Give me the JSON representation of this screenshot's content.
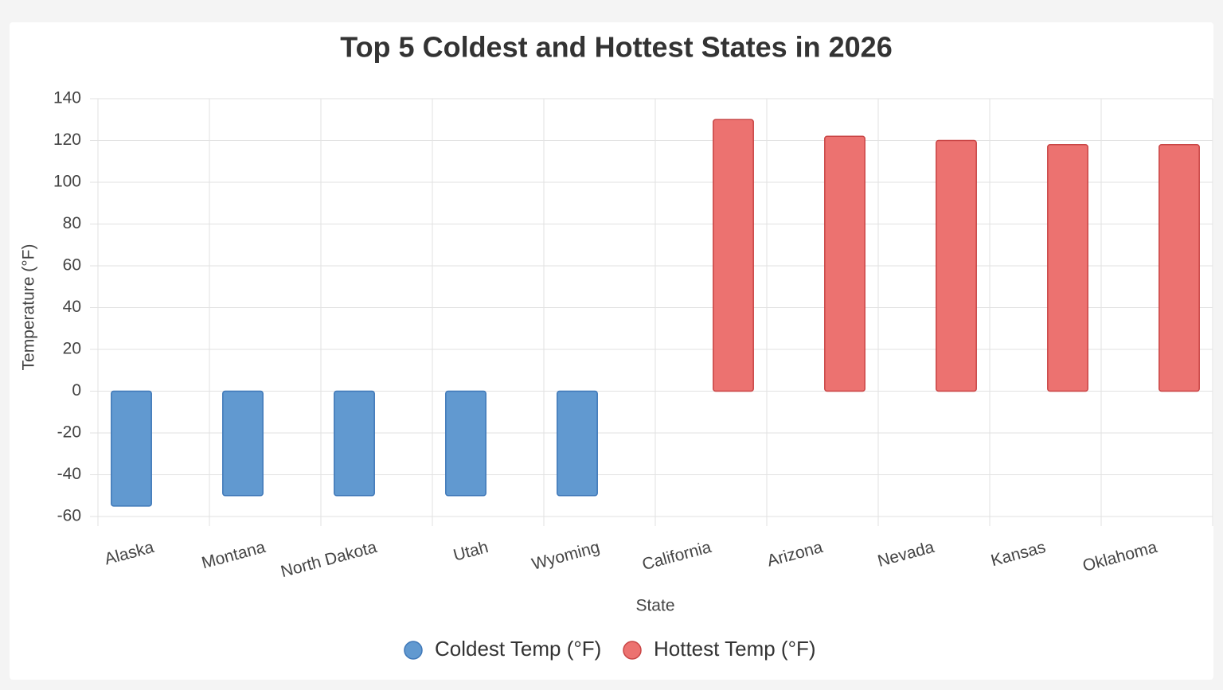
{
  "chart_data": {
    "type": "bar",
    "title": "Top 5 Coldest and Hottest States in 2026",
    "x_label": "State",
    "y_label": "Temperature (°F)",
    "categories": [
      "Alaska",
      "Montana",
      "North Dakota",
      "Utah",
      "Wyoming",
      "California",
      "Arizona",
      "Nevada",
      "Kansas",
      "Oklahoma"
    ],
    "series": [
      {
        "name": "Coldest Temp (°F)",
        "color": "#6199d0",
        "values": [
          -55,
          -50,
          -50,
          -50,
          -50,
          null,
          null,
          null,
          null,
          null
        ]
      },
      {
        "name": "Hottest Temp (°F)",
        "color": "#ec7270",
        "values": [
          null,
          null,
          null,
          null,
          null,
          130,
          122,
          120,
          118,
          118
        ]
      }
    ],
    "ylim": [
      -60,
      140
    ],
    "yticks": [
      -60,
      -40,
      -20,
      0,
      20,
      40,
      60,
      80,
      100,
      120,
      140
    ],
    "grid": true
  }
}
